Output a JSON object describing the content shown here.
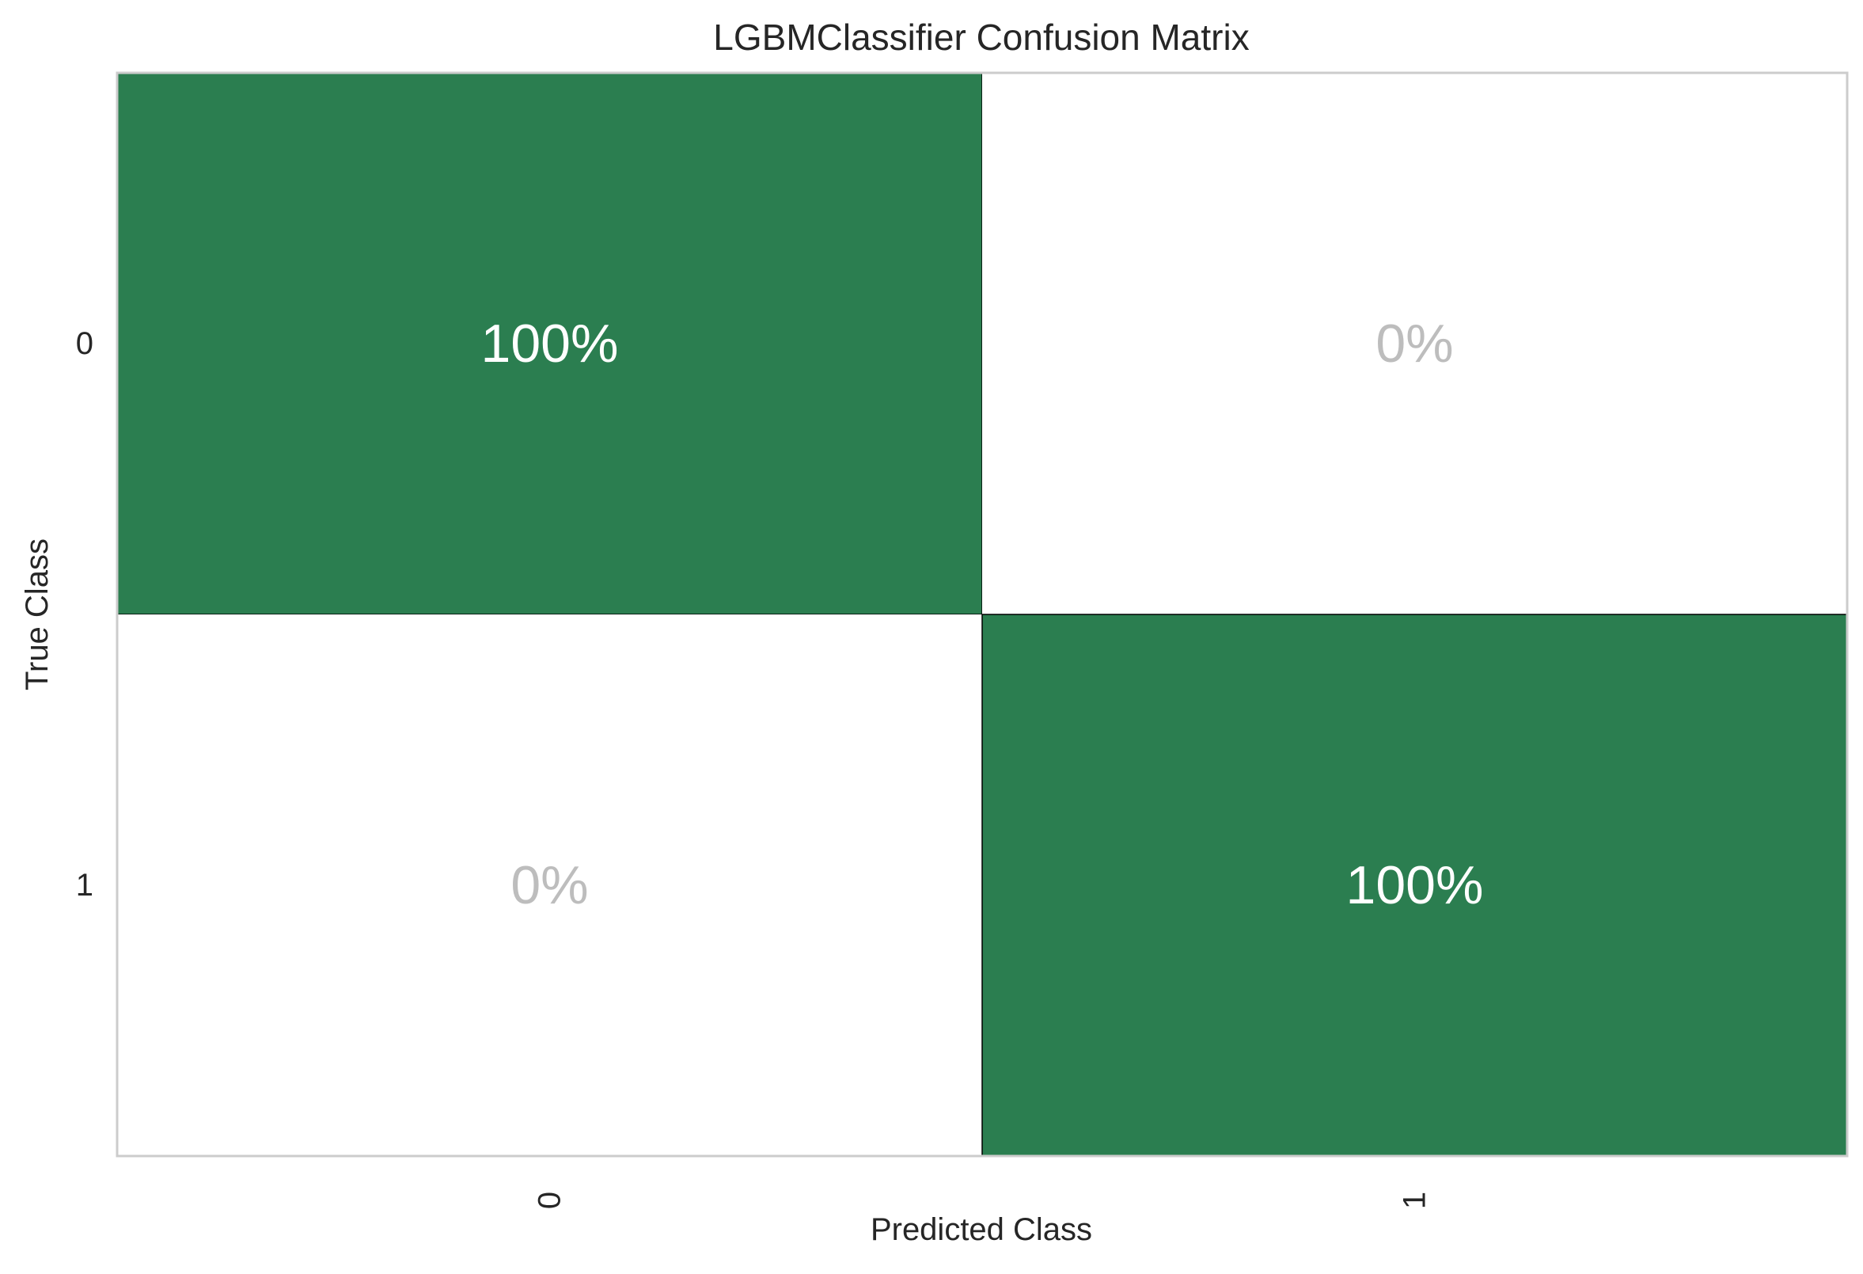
{
  "chart_data": {
    "type": "heatmap",
    "title": "LGBMClassifier Confusion Matrix",
    "xlabel": "Predicted Class",
    "ylabel": "True Class",
    "x_categories": [
      "0",
      "1"
    ],
    "y_categories": [
      "0",
      "1"
    ],
    "values": [
      [
        100,
        0
      ],
      [
        0,
        100
      ]
    ],
    "cell_labels": [
      [
        "100%",
        "0%"
      ],
      [
        "0%",
        "100%"
      ]
    ],
    "grid": false,
    "colors": {
      "high": "#2b7e50",
      "low": "#ffffff",
      "label_on_high": "#ffffff",
      "label_on_low": "#bdbdbd",
      "frame": "#cccccc",
      "text": "#262626"
    }
  }
}
